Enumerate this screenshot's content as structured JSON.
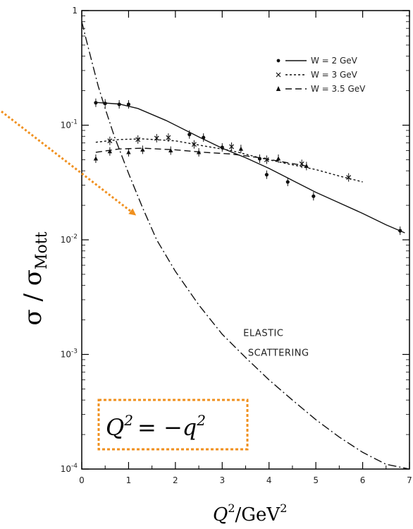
{
  "chart_data": {
    "type": "line",
    "title": "",
    "xlabel": "Q",
    "xlabel_sup": "2",
    "xlabel_unit": "/GeV",
    "xlabel_unit_sup": "2",
    "ylabel_main": "σ / σ",
    "ylabel_sub": "Mott",
    "xlim": [
      0,
      7
    ],
    "ylim": [
      0.0001,
      1
    ],
    "yscale": "log",
    "x_ticks": [
      "0",
      "1",
      "2",
      "3",
      "4",
      "5",
      "6",
      "7"
    ],
    "y_ticks": [
      {
        "value": 1,
        "label": "1"
      },
      {
        "value": 0.1,
        "label": "10",
        "sup": "-1"
      },
      {
        "value": 0.01,
        "label": "10",
        "sup": "-2"
      },
      {
        "value": 0.001,
        "label": "10",
        "sup": "-3"
      },
      {
        "value": 0.0001,
        "label": "10",
        "sup": "-4"
      }
    ],
    "legend_position": "top-right",
    "series": [
      {
        "name": "W = 2  GeV",
        "marker": "●",
        "dash": "none",
        "curve": [
          [
            0.3,
            0.158
          ],
          [
            0.8,
            0.153
          ],
          [
            1.2,
            0.14
          ],
          [
            1.8,
            0.11
          ],
          [
            2.5,
            0.079
          ],
          [
            3.0,
            0.063
          ],
          [
            3.5,
            0.052
          ],
          [
            4.0,
            0.042
          ],
          [
            4.5,
            0.033
          ],
          [
            5.0,
            0.026
          ],
          [
            5.5,
            0.021
          ],
          [
            6.0,
            0.017
          ],
          [
            6.5,
            0.0135
          ],
          [
            6.9,
            0.0115
          ]
        ],
        "points": [
          [
            0.3,
            0.157
          ],
          [
            0.5,
            0.155
          ],
          [
            0.8,
            0.152
          ],
          [
            1.0,
            0.152
          ],
          [
            2.3,
            0.083
          ],
          [
            2.6,
            0.078
          ],
          [
            3.0,
            0.064
          ],
          [
            3.8,
            0.051
          ],
          [
            3.95,
            0.037
          ],
          [
            4.4,
            0.032
          ],
          [
            4.95,
            0.024
          ],
          [
            6.8,
            0.012
          ]
        ]
      },
      {
        "name": "W = 3  GeV",
        "marker": "×",
        "dash": "3,3",
        "curve": [
          [
            0.3,
            0.071
          ],
          [
            0.8,
            0.075
          ],
          [
            1.3,
            0.076
          ],
          [
            2.0,
            0.073
          ],
          [
            2.6,
            0.066
          ],
          [
            3.2,
            0.06
          ],
          [
            3.8,
            0.052
          ],
          [
            4.4,
            0.046
          ],
          [
            5.0,
            0.041
          ],
          [
            5.5,
            0.036
          ],
          [
            6.0,
            0.032
          ]
        ],
        "points": [
          [
            0.6,
            0.073
          ],
          [
            1.2,
            0.075
          ],
          [
            1.6,
            0.077
          ],
          [
            1.85,
            0.078
          ],
          [
            2.4,
            0.068
          ],
          [
            3.2,
            0.065
          ],
          [
            3.95,
            0.05
          ],
          [
            4.7,
            0.046
          ],
          [
            5.7,
            0.035
          ]
        ]
      },
      {
        "name": "W = 3.5  GeV",
        "marker": "▲",
        "dash": "9,5",
        "curve": [
          [
            0.3,
            0.058
          ],
          [
            0.8,
            0.062
          ],
          [
            1.3,
            0.063
          ],
          [
            2.0,
            0.061
          ],
          [
            2.6,
            0.058
          ],
          [
            3.2,
            0.056
          ],
          [
            3.8,
            0.052
          ],
          [
            4.4,
            0.047
          ],
          [
            4.8,
            0.044
          ]
        ],
        "points": [
          [
            0.3,
            0.051
          ],
          [
            0.6,
            0.059
          ],
          [
            1.0,
            0.058
          ],
          [
            1.3,
            0.061
          ],
          [
            1.9,
            0.06
          ],
          [
            2.5,
            0.058
          ],
          [
            3.4,
            0.062
          ],
          [
            4.2,
            0.051
          ],
          [
            4.8,
            0.044
          ]
        ]
      },
      {
        "name": "ELASTIC SCATTERING",
        "dash": "12,4,2,4",
        "curve": [
          [
            0,
            0.8
          ],
          [
            0.1,
            0.55
          ],
          [
            0.2,
            0.38
          ],
          [
            0.35,
            0.22
          ],
          [
            0.5,
            0.14
          ],
          [
            0.7,
            0.079
          ],
          [
            1.0,
            0.038
          ],
          [
            1.3,
            0.019
          ],
          [
            1.6,
            0.01
          ],
          [
            2.0,
            0.0053
          ],
          [
            2.5,
            0.0027
          ],
          [
            3.0,
            0.0015
          ],
          [
            3.5,
            0.00094
          ],
          [
            4.0,
            0.0006
          ],
          [
            4.5,
            0.0004
          ],
          [
            5.0,
            0.00027
          ],
          [
            5.5,
            0.00019
          ],
          [
            6.0,
            0.00014
          ],
          [
            6.5,
            0.00011
          ],
          [
            7.0,
            0.0001
          ]
        ]
      }
    ],
    "annotations": [
      {
        "text": "ELASTIC",
        "x": 3.45,
        "y": 0.00145
      },
      {
        "text": "SCATTERING",
        "x": 3.55,
        "y": 0.00097
      }
    ],
    "formula": {
      "lhs": "Q",
      "lhs_sup": "2",
      "op": "= −",
      "rhs": "q",
      "rhs_sup": "2",
      "box_color": "#f0901e"
    },
    "arrow_color": "#f0901e"
  }
}
